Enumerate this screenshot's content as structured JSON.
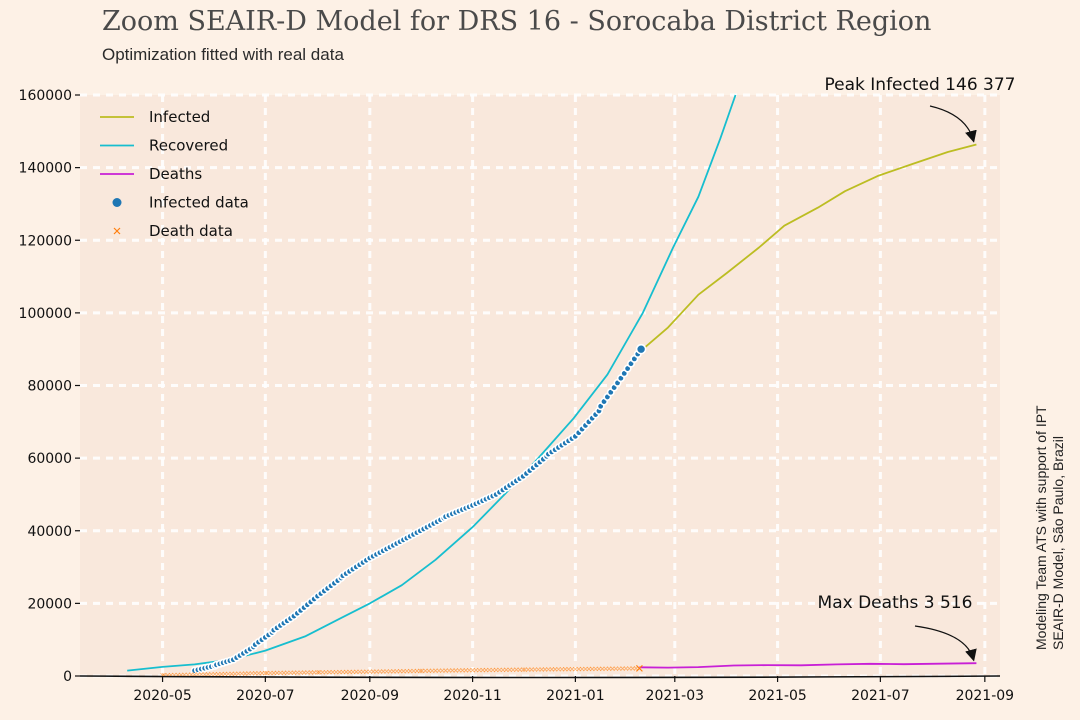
{
  "header": {
    "title": "Zoom SEAIR-D Model for DRS 16 - Sorocaba District Region",
    "subtitle": "Optimization fitted with real data"
  },
  "side_note": {
    "line1": "Modeling Team ATS with support of IPT",
    "line2": "SEAIR-D Model, São Paulo, Brazil"
  },
  "chart_data": {
    "type": "line",
    "title": "Zoom SEAIR-D Model for DRS 16 - Sorocaba District Region",
    "subtitle": "Optimization fitted with real data",
    "xlabel": "",
    "ylabel": "",
    "x_range": [
      "2020-03-13",
      "2021-09-10"
    ],
    "ylim": [
      0,
      160000
    ],
    "y_ticks": [
      0,
      20000,
      40000,
      60000,
      80000,
      100000,
      120000,
      140000,
      160000
    ],
    "x_ticks": [
      "2020-05",
      "2020-07",
      "2020-09",
      "2020-11",
      "2021-01",
      "2021-03",
      "2021-05",
      "2021-07",
      "2021-09"
    ],
    "grid": true,
    "legend_position": "top-left",
    "colors": {
      "Infected": "#bcbd22",
      "Recovered": "#17becf",
      "Deaths": "#c81fd6",
      "Infected data": "#1f77b4",
      "Death data": "#ff7f0e",
      "plot_bg": "#f9e8dc",
      "page_bg": "#fdf1e6"
    },
    "series": [
      {
        "name": "Infected",
        "kind": "line",
        "points": [
          [
            "2021-02-10",
            90000
          ],
          [
            "2021-02-25",
            96000
          ],
          [
            "2021-03-15",
            105000
          ],
          [
            "2021-04-01",
            111000
          ],
          [
            "2021-04-20",
            118000
          ],
          [
            "2021-05-05",
            124000
          ],
          [
            "2021-05-25",
            129000
          ],
          [
            "2021-06-10",
            133500
          ],
          [
            "2021-06-30",
            137800
          ],
          [
            "2021-07-20",
            141000
          ],
          [
            "2021-08-10",
            144300
          ],
          [
            "2021-08-27",
            146377
          ]
        ]
      },
      {
        "name": "Recovered",
        "kind": "line",
        "points": [
          [
            "2020-04-10",
            1500
          ],
          [
            "2020-05-01",
            2500
          ],
          [
            "2020-05-20",
            3200
          ],
          [
            "2020-06-10",
            4500
          ],
          [
            "2020-07-01",
            7000
          ],
          [
            "2020-07-25",
            11000
          ],
          [
            "2020-08-15",
            16000
          ],
          [
            "2020-09-01",
            20000
          ],
          [
            "2020-09-20",
            25000
          ],
          [
            "2020-10-10",
            32000
          ],
          [
            "2020-11-01",
            41000
          ],
          [
            "2020-11-20",
            50000
          ],
          [
            "2020-12-10",
            60000
          ],
          [
            "2020-12-31",
            71000
          ],
          [
            "2021-01-20",
            83000
          ],
          [
            "2021-02-10",
            100000
          ],
          [
            "2021-02-28",
            118000
          ],
          [
            "2021-03-15",
            132000
          ],
          [
            "2021-03-28",
            148000
          ],
          [
            "2021-04-06",
            160000
          ]
        ]
      },
      {
        "name": "Deaths",
        "kind": "line",
        "points": [
          [
            "2021-02-08",
            2400
          ],
          [
            "2021-02-25",
            2300
          ],
          [
            "2021-03-15",
            2450
          ],
          [
            "2021-04-05",
            2900
          ],
          [
            "2021-04-25",
            3000
          ],
          [
            "2021-05-15",
            2950
          ],
          [
            "2021-06-05",
            3200
          ],
          [
            "2021-06-25",
            3350
          ],
          [
            "2021-07-15",
            3250
          ],
          [
            "2021-08-05",
            3400
          ],
          [
            "2021-08-27",
            3516
          ]
        ]
      },
      {
        "name": "Infected data",
        "kind": "scatter",
        "points": [
          [
            "2020-05-20",
            1500
          ],
          [
            "2020-06-01",
            2800
          ],
          [
            "2020-06-12",
            4500
          ],
          [
            "2020-06-24",
            8000
          ],
          [
            "2020-07-05",
            12000
          ],
          [
            "2020-07-18",
            16500
          ],
          [
            "2020-08-01",
            22000
          ],
          [
            "2020-08-15",
            27000
          ],
          [
            "2020-09-01",
            32500
          ],
          [
            "2020-09-15",
            36000
          ],
          [
            "2020-10-01",
            40000
          ],
          [
            "2020-10-15",
            43500
          ],
          [
            "2020-11-01",
            47000
          ],
          [
            "2020-11-15",
            50000
          ],
          [
            "2020-12-01",
            55000
          ],
          [
            "2020-12-15",
            60500
          ],
          [
            "2021-01-01",
            66000
          ],
          [
            "2021-01-15",
            73000
          ],
          [
            "2021-01-28",
            82000
          ],
          [
            "2021-02-09",
            90000
          ]
        ]
      },
      {
        "name": "Death data",
        "kind": "scatter",
        "points": [
          [
            "2020-05-01",
            200
          ],
          [
            "2020-06-01",
            500
          ],
          [
            "2020-07-01",
            800
          ],
          [
            "2020-08-01",
            1000
          ],
          [
            "2020-09-01",
            1200
          ],
          [
            "2020-10-01",
            1400
          ],
          [
            "2020-11-01",
            1600
          ],
          [
            "2020-12-01",
            1750
          ],
          [
            "2021-01-01",
            1900
          ],
          [
            "2021-02-08",
            2100
          ]
        ]
      }
    ],
    "annotations": [
      {
        "text": "Peak Infected 146 377",
        "x": "2021-08-27",
        "y": 146377
      },
      {
        "text": "Max Deaths 3 516",
        "x": "2021-08-27",
        "y": 3516
      }
    ]
  }
}
